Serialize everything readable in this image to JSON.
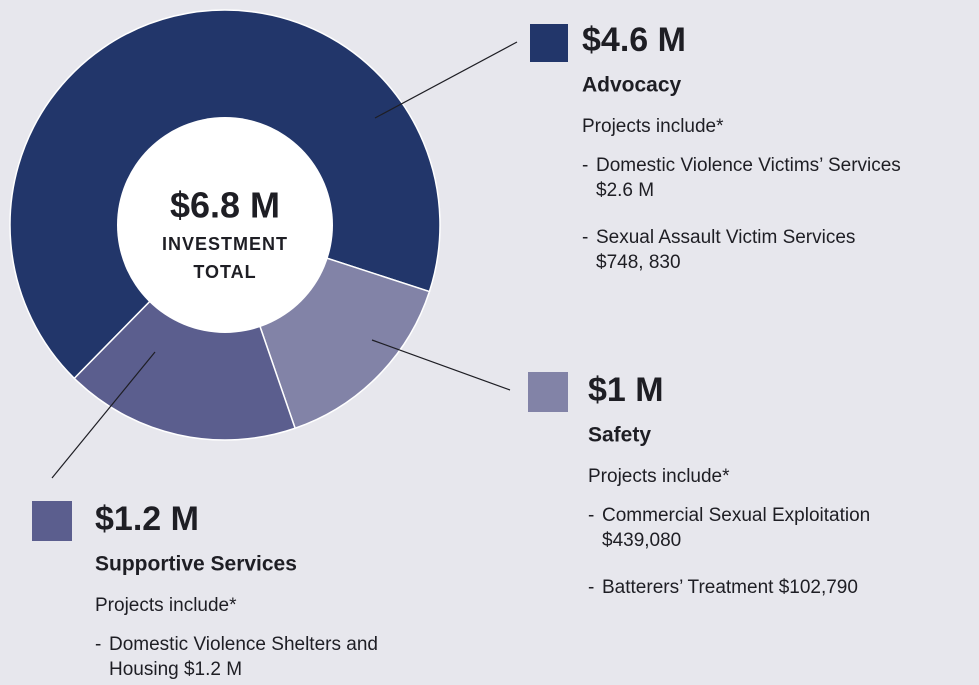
{
  "chart_data": {
    "type": "donut",
    "total": 6.8,
    "total_label": "$6.8 M",
    "center_text": [
      "INVESTMENT",
      "TOTAL"
    ],
    "categories": [
      "Advocacy",
      "Safety",
      "Supportive Services"
    ],
    "values": [
      4.6,
      1.0,
      1.2
    ],
    "value_labels": [
      "$4.6 M",
      "$1 M",
      "$1.2 M"
    ],
    "colors": [
      "#22366a",
      "#8283a7",
      "#5b5e8e"
    ],
    "projects": [
      {
        "heading": "Projects include*",
        "items": [
          [
            "Domestic Violence Victims’ Services",
            "$2.6 M"
          ],
          [
            "Sexual Assault Victim Services",
            "$748, 830"
          ]
        ]
      },
      {
        "heading": "Projects include*",
        "items": [
          [
            "Commercial Sexual Exploitation",
            "$439,080"
          ],
          [
            "Batterers’ Treatment $102,790"
          ]
        ]
      },
      {
        "heading": "Projects include*",
        "items": [
          [
            "Domestic Violence Shelters and",
            "Housing $1.2 M"
          ]
        ]
      }
    ]
  }
}
